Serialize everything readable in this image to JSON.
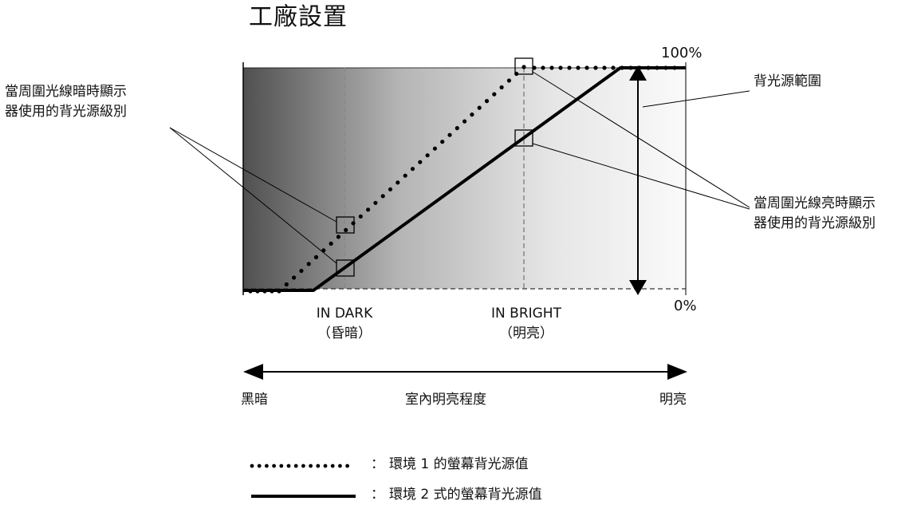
{
  "title": "工廠設置",
  "axis": {
    "top_percent": "100%",
    "bottom_percent": "0%",
    "dark_label": "IN DARK",
    "dark_sub": "（昏暗）",
    "bright_label": "IN BRIGHT",
    "bright_sub": "（明亮）",
    "left_end": "黑暗",
    "center_label": "室內明亮程度",
    "right_end": "明亮"
  },
  "callouts": {
    "dark_level_line1": "當周圍光線暗時顯示",
    "dark_level_line2": "器使用的背光源級別",
    "backlight_range": "背光源範圍",
    "bright_level_line1": "當周圍光線亮時顯示",
    "bright_level_line2": "器使用的背光源級別"
  },
  "legend": {
    "items": [
      {
        "style": "dotted",
        "sep": "：",
        "label": "環境 1 的螢幕背光源值"
      },
      {
        "style": "solid",
        "sep": "：",
        "label": "環境 2 式的螢幕背光源值"
      }
    ]
  },
  "colors": {
    "gradient_dark": "#505050",
    "gradient_light": "#f8f8f8",
    "line": "#000000"
  }
}
